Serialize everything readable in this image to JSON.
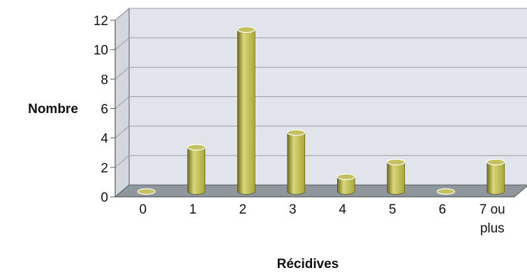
{
  "chart_data": {
    "type": "bar",
    "title": "",
    "xlabel": "Récidives",
    "ylabel": "Nombre",
    "categories": [
      [
        "0"
      ],
      [
        "1"
      ],
      [
        "2"
      ],
      [
        "3"
      ],
      [
        "4"
      ],
      [
        "5"
      ],
      [
        "6"
      ],
      [
        "7 ou",
        "plus"
      ]
    ],
    "values": [
      0,
      3,
      11,
      4,
      1,
      2,
      0,
      2
    ],
    "ylim": [
      0,
      12
    ],
    "yticks": [
      0,
      2,
      4,
      6,
      8,
      10,
      12
    ],
    "grid": true,
    "legend": "none",
    "style": "3d-cylinder",
    "colors": {
      "bar_light": "#d9d77a",
      "bar_mid": "#a9a73a",
      "bar_dark": "#6d6b1a",
      "bar_top": "#c4c25e",
      "wall": "#e2e4ec",
      "floor": "#8f969c",
      "gridline": "#9a9da3",
      "axis": "#555a60",
      "text": "#111111"
    }
  }
}
